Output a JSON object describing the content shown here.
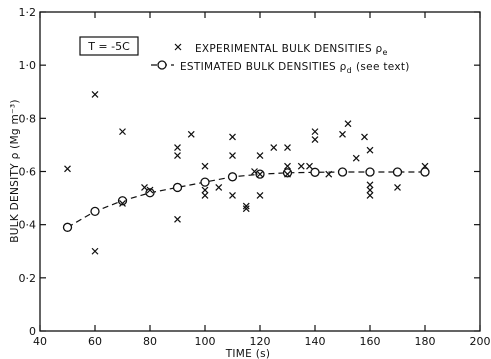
{
  "chart_data": {
    "type": "scatter",
    "annotation": "T = -5C",
    "xlabel": "TIME (s)",
    "ylabel": "BULK DENSITY ρ (Mg m⁻³)",
    "xlim": [
      40,
      200
    ],
    "ylim": [
      0,
      1.2
    ],
    "x_ticks": [
      40,
      60,
      80,
      100,
      120,
      140,
      160,
      180,
      200
    ],
    "x_tick_labels": [
      "40",
      "60",
      "80",
      "100",
      "120",
      "140",
      "160",
      "180",
      "200"
    ],
    "y_ticks": [
      0,
      0.2,
      0.4,
      0.6,
      0.8,
      1.0,
      1.2
    ],
    "y_tick_labels": [
      "0",
      "0·2",
      "0·4",
      "0·6",
      "0·8",
      "1·0",
      "1·2"
    ],
    "grid": false,
    "legend_position": "top-right",
    "series": [
      {
        "name": "EXPERIMENTAL BULK DENSITIES ρe",
        "legend_text": "EXPERIMENTAL BULK DENSITIES ρ",
        "legend_sub": "e",
        "marker": "x",
        "points": [
          [
            50,
            0.61
          ],
          [
            60,
            0.89
          ],
          [
            60,
            0.3
          ],
          [
            70,
            0.75
          ],
          [
            70,
            0.48
          ],
          [
            78,
            0.54
          ],
          [
            80,
            0.53
          ],
          [
            90,
            0.69
          ],
          [
            90,
            0.66
          ],
          [
            90,
            0.42
          ],
          [
            95,
            0.74
          ],
          [
            100,
            0.62
          ],
          [
            100,
            0.53
          ],
          [
            100,
            0.51
          ],
          [
            105,
            0.54
          ],
          [
            110,
            0.73
          ],
          [
            110,
            0.66
          ],
          [
            110,
            0.51
          ],
          [
            115,
            0.47
          ],
          [
            115,
            0.46
          ],
          [
            118,
            0.6
          ],
          [
            120,
            0.66
          ],
          [
            120,
            0.59
          ],
          [
            120,
            0.51
          ],
          [
            125,
            0.69
          ],
          [
            130,
            0.69
          ],
          [
            130,
            0.62
          ],
          [
            130,
            0.59
          ],
          [
            135,
            0.62
          ],
          [
            138,
            0.62
          ],
          [
            140,
            0.75
          ],
          [
            140,
            0.72
          ],
          [
            145,
            0.59
          ],
          [
            150,
            0.74
          ],
          [
            152,
            0.78
          ],
          [
            155,
            0.65
          ],
          [
            158,
            0.73
          ],
          [
            160,
            0.68
          ],
          [
            160,
            0.55
          ],
          [
            160,
            0.53
          ],
          [
            160,
            0.51
          ],
          [
            170,
            0.54
          ],
          [
            180,
            0.62
          ]
        ]
      },
      {
        "name": "ESTIMATED BULK DENSITIES ρd",
        "legend_text": "ESTIMATED BULK DENSITIES ρ",
        "legend_sub": "d",
        "legend_suffix": "(see text)",
        "marker": "circle",
        "line": "dashed",
        "x": [
          50,
          60,
          70,
          80,
          90,
          100,
          110,
          120,
          130,
          140,
          150,
          160,
          170,
          180
        ],
        "y": [
          0.39,
          0.45,
          0.49,
          0.52,
          0.54,
          0.56,
          0.58,
          0.59,
          0.595,
          0.597,
          0.598,
          0.598,
          0.598,
          0.598
        ]
      }
    ]
  }
}
